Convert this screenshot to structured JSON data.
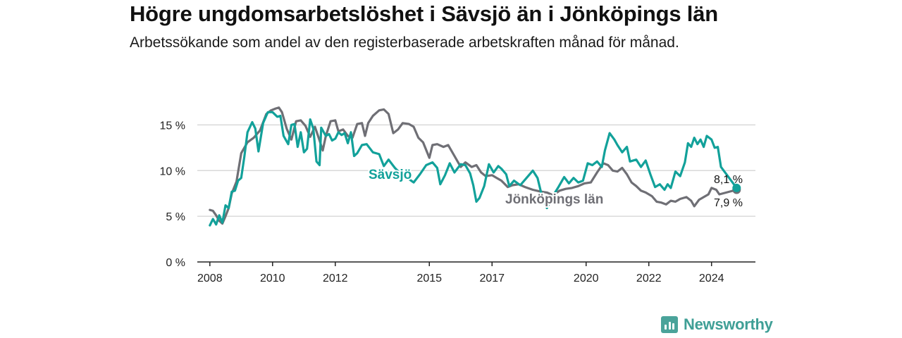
{
  "title": "Högre ungdomsarbetslöshet i Sävsjö än i Jönköpings län",
  "subtitle": "Arbetssökande som andel av den registerbaserade arbetskraften månad för månad.",
  "brand": "Newsworthy",
  "colors": {
    "savsjo": "#12a19a",
    "lan": "#6f6f75",
    "grid": "#d9d9d9",
    "axis": "#222222",
    "text": "#222222"
  },
  "chart_data": {
    "type": "line",
    "x_unit": "year (decimal)",
    "xlim": [
      2007.6,
      2025.4
    ],
    "ylim": [
      0,
      17.5
    ],
    "y_ticks": [
      0,
      5,
      10,
      15
    ],
    "y_tick_labels": [
      "0 %",
      "5 %",
      "10 %",
      "15 %"
    ],
    "x_ticks": [
      2008,
      2010,
      2012,
      2015,
      2017,
      2020,
      2022,
      2024
    ],
    "x_tick_labels": [
      "2008",
      "2010",
      "2012",
      "2015",
      "2017",
      "2020",
      "2022",
      "2024"
    ],
    "grid": "horizontal",
    "legend": "inline labels",
    "series": [
      {
        "name": "Sävsjö",
        "label": "Sävsjö",
        "end_label": "8,1 %",
        "last_value": 8.1,
        "points": [
          [
            2008.0,
            4.0
          ],
          [
            2008.1,
            4.7
          ],
          [
            2008.2,
            4.1
          ],
          [
            2008.3,
            5.1
          ],
          [
            2008.4,
            4.3
          ],
          [
            2008.5,
            6.2
          ],
          [
            2008.6,
            5.9
          ],
          [
            2008.7,
            7.7
          ],
          [
            2008.8,
            7.8
          ],
          [
            2008.9,
            8.9
          ],
          [
            2009.0,
            9.2
          ],
          [
            2009.1,
            11.5
          ],
          [
            2009.2,
            14.2
          ],
          [
            2009.35,
            15.3
          ],
          [
            2009.45,
            14.6
          ],
          [
            2009.55,
            12.1
          ],
          [
            2009.7,
            15.2
          ],
          [
            2009.85,
            16.4
          ],
          [
            2010.0,
            16.4
          ],
          [
            2010.15,
            15.9
          ],
          [
            2010.25,
            16.0
          ],
          [
            2010.35,
            13.8
          ],
          [
            2010.5,
            12.9
          ],
          [
            2010.6,
            15.0
          ],
          [
            2010.7,
            15.1
          ],
          [
            2010.8,
            12.6
          ],
          [
            2010.9,
            14.2
          ],
          [
            2011.0,
            12.0
          ],
          [
            2011.1,
            12.4
          ],
          [
            2011.2,
            15.6
          ],
          [
            2011.3,
            14.6
          ],
          [
            2011.4,
            11.0
          ],
          [
            2011.5,
            10.6
          ],
          [
            2011.55,
            14.7
          ],
          [
            2011.7,
            13.8
          ],
          [
            2011.8,
            14.0
          ],
          [
            2011.9,
            13.3
          ],
          [
            2012.0,
            13.5
          ],
          [
            2012.1,
            14.2
          ],
          [
            2012.2,
            13.9
          ],
          [
            2012.3,
            14.1
          ],
          [
            2012.4,
            13.0
          ],
          [
            2012.5,
            14.2
          ],
          [
            2012.6,
            11.6
          ],
          [
            2012.7,
            11.9
          ],
          [
            2012.85,
            12.8
          ],
          [
            2013.0,
            12.9
          ],
          [
            2013.2,
            12.0
          ],
          [
            2013.4,
            11.8
          ],
          [
            2013.55,
            10.5
          ],
          [
            2013.7,
            11.2
          ],
          [
            2013.9,
            10.3
          ],
          [
            2014.1,
            9.6
          ],
          [
            2014.3,
            9.2
          ],
          [
            2014.5,
            8.7
          ],
          [
            2014.7,
            9.6
          ],
          [
            2014.9,
            10.6
          ],
          [
            2015.1,
            10.9
          ],
          [
            2015.25,
            10.3
          ],
          [
            2015.35,
            8.5
          ],
          [
            2015.5,
            9.5
          ],
          [
            2015.65,
            10.8
          ],
          [
            2015.8,
            9.8
          ],
          [
            2016.0,
            10.7
          ],
          [
            2016.15,
            10.6
          ],
          [
            2016.3,
            9.7
          ],
          [
            2016.4,
            8.4
          ],
          [
            2016.5,
            6.6
          ],
          [
            2016.6,
            7.0
          ],
          [
            2016.75,
            8.3
          ],
          [
            2016.9,
            10.7
          ],
          [
            2017.05,
            9.8
          ],
          [
            2017.2,
            10.5
          ],
          [
            2017.3,
            10.2
          ],
          [
            2017.45,
            9.6
          ],
          [
            2017.55,
            8.3
          ],
          [
            2017.7,
            8.9
          ],
          [
            2017.9,
            8.4
          ],
          [
            2018.1,
            9.2
          ],
          [
            2018.3,
            10.0
          ],
          [
            2018.45,
            9.2
          ],
          [
            2018.6,
            7.1
          ],
          [
            2018.75,
            5.9
          ],
          [
            2018.9,
            7.0
          ],
          [
            2019.1,
            8.1
          ],
          [
            2019.3,
            9.3
          ],
          [
            2019.45,
            8.6
          ],
          [
            2019.6,
            9.2
          ],
          [
            2019.75,
            8.7
          ],
          [
            2019.9,
            8.9
          ],
          [
            2020.05,
            10.8
          ],
          [
            2020.2,
            10.6
          ],
          [
            2020.35,
            11.0
          ],
          [
            2020.5,
            10.4
          ],
          [
            2020.6,
            12.2
          ],
          [
            2020.75,
            14.1
          ],
          [
            2020.9,
            13.4
          ],
          [
            2021.0,
            12.8
          ],
          [
            2021.15,
            12.0
          ],
          [
            2021.3,
            12.6
          ],
          [
            2021.4,
            11.0
          ],
          [
            2021.6,
            11.2
          ],
          [
            2021.75,
            10.4
          ],
          [
            2021.9,
            11.1
          ],
          [
            2022.05,
            9.6
          ],
          [
            2022.2,
            8.2
          ],
          [
            2022.35,
            8.5
          ],
          [
            2022.5,
            7.9
          ],
          [
            2022.6,
            8.5
          ],
          [
            2022.7,
            8.1
          ],
          [
            2022.85,
            9.9
          ],
          [
            2023.0,
            9.4
          ],
          [
            2023.15,
            10.9
          ],
          [
            2023.25,
            13.0
          ],
          [
            2023.35,
            12.6
          ],
          [
            2023.45,
            13.6
          ],
          [
            2023.55,
            12.9
          ],
          [
            2023.65,
            13.4
          ],
          [
            2023.75,
            12.6
          ],
          [
            2023.85,
            13.8
          ],
          [
            2024.0,
            13.4
          ],
          [
            2024.1,
            12.5
          ],
          [
            2024.2,
            12.6
          ],
          [
            2024.3,
            10.4
          ],
          [
            2024.8,
            8.1
          ]
        ]
      },
      {
        "name": "Jönköpings län",
        "label": "Jönköpings län",
        "end_label": "7,9 %",
        "last_value": 7.9,
        "points": [
          [
            2008.0,
            5.7
          ],
          [
            2008.1,
            5.6
          ],
          [
            2008.2,
            5.1
          ],
          [
            2008.3,
            4.5
          ],
          [
            2008.4,
            4.2
          ],
          [
            2008.5,
            5.0
          ],
          [
            2008.6,
            5.9
          ],
          [
            2008.7,
            7.5
          ],
          [
            2008.85,
            8.8
          ],
          [
            2009.0,
            11.9
          ],
          [
            2009.2,
            13.1
          ],
          [
            2009.4,
            13.6
          ],
          [
            2009.6,
            14.4
          ],
          [
            2009.8,
            16.2
          ],
          [
            2009.95,
            16.6
          ],
          [
            2010.1,
            16.8
          ],
          [
            2010.2,
            16.9
          ],
          [
            2010.3,
            16.4
          ],
          [
            2010.45,
            14.6
          ],
          [
            2010.6,
            13.4
          ],
          [
            2010.75,
            15.4
          ],
          [
            2010.9,
            15.5
          ],
          [
            2011.05,
            14.9
          ],
          [
            2011.2,
            13.7
          ],
          [
            2011.35,
            14.8
          ],
          [
            2011.5,
            13.3
          ],
          [
            2011.6,
            12.2
          ],
          [
            2011.7,
            13.8
          ],
          [
            2011.85,
            15.4
          ],
          [
            2012.0,
            15.5
          ],
          [
            2012.1,
            14.3
          ],
          [
            2012.25,
            14.5
          ],
          [
            2012.4,
            13.8
          ],
          [
            2012.55,
            13.6
          ],
          [
            2012.7,
            15.1
          ],
          [
            2012.85,
            15.2
          ],
          [
            2012.95,
            13.8
          ],
          [
            2013.05,
            15.2
          ],
          [
            2013.2,
            16.0
          ],
          [
            2013.4,
            16.6
          ],
          [
            2013.55,
            16.7
          ],
          [
            2013.7,
            16.2
          ],
          [
            2013.85,
            14.1
          ],
          [
            2014.0,
            14.5
          ],
          [
            2014.15,
            15.2
          ],
          [
            2014.35,
            15.1
          ],
          [
            2014.5,
            14.8
          ],
          [
            2014.65,
            13.6
          ],
          [
            2014.8,
            13.1
          ],
          [
            2015.0,
            11.4
          ],
          [
            2015.1,
            12.8
          ],
          [
            2015.25,
            12.9
          ],
          [
            2015.45,
            12.6
          ],
          [
            2015.6,
            12.8
          ],
          [
            2015.8,
            11.6
          ],
          [
            2016.0,
            10.4
          ],
          [
            2016.15,
            10.9
          ],
          [
            2016.35,
            10.4
          ],
          [
            2016.5,
            10.6
          ],
          [
            2016.65,
            9.8
          ],
          [
            2016.8,
            9.4
          ],
          [
            2017.0,
            9.5
          ],
          [
            2017.15,
            9.2
          ],
          [
            2017.3,
            8.9
          ],
          [
            2017.5,
            8.2
          ],
          [
            2017.65,
            8.4
          ],
          [
            2017.85,
            8.5
          ],
          [
            2018.05,
            8.2
          ],
          [
            2018.3,
            7.9
          ],
          [
            2018.55,
            7.7
          ],
          [
            2018.75,
            7.6
          ],
          [
            2018.95,
            7.3
          ],
          [
            2019.15,
            7.8
          ],
          [
            2019.35,
            8.0
          ],
          [
            2019.55,
            8.1
          ],
          [
            2019.75,
            8.3
          ],
          [
            2019.95,
            8.6
          ],
          [
            2020.15,
            8.7
          ],
          [
            2020.35,
            9.8
          ],
          [
            2020.55,
            10.8
          ],
          [
            2020.7,
            10.6
          ],
          [
            2020.85,
            10.0
          ],
          [
            2021.0,
            9.9
          ],
          [
            2021.15,
            10.3
          ],
          [
            2021.3,
            9.6
          ],
          [
            2021.45,
            8.7
          ],
          [
            2021.6,
            8.3
          ],
          [
            2021.75,
            7.8
          ],
          [
            2021.9,
            7.6
          ],
          [
            2022.1,
            7.2
          ],
          [
            2022.25,
            6.6
          ],
          [
            2022.4,
            6.5
          ],
          [
            2022.55,
            6.3
          ],
          [
            2022.7,
            6.7
          ],
          [
            2022.85,
            6.6
          ],
          [
            2023.0,
            6.9
          ],
          [
            2023.2,
            7.1
          ],
          [
            2023.35,
            6.7
          ],
          [
            2023.45,
            6.1
          ],
          [
            2023.6,
            6.8
          ],
          [
            2023.75,
            7.1
          ],
          [
            2023.9,
            7.4
          ],
          [
            2024.0,
            8.1
          ],
          [
            2024.15,
            7.9
          ],
          [
            2024.25,
            7.4
          ],
          [
            2024.8,
            7.9
          ]
        ]
      }
    ]
  }
}
